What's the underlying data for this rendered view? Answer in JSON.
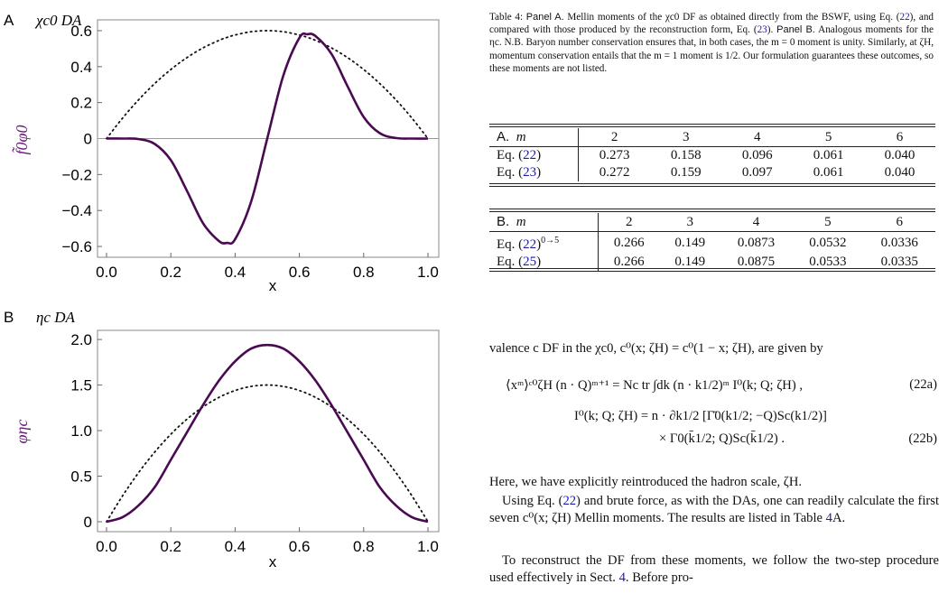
{
  "figure": {
    "panelA": {
      "letter": "A",
      "title": "χc0 DA",
      "ylabel": "f̃0φ0",
      "xlabel": "x",
      "xticks": [
        "0.0",
        "0.2",
        "0.4",
        "0.6",
        "0.8",
        "1.0"
      ],
      "yticks": [
        "0.6",
        "0.4",
        "0.2",
        "0",
        "−0.2",
        "−0.4",
        "−0.6"
      ]
    },
    "panelB": {
      "letter": "B",
      "title": "ηc DA",
      "ylabel": "φηc",
      "xlabel": "x",
      "xticks": [
        "0.0",
        "0.2",
        "0.4",
        "0.6",
        "0.8",
        "1.0"
      ],
      "yticks": [
        "2.0",
        "1.5",
        "1.0",
        "0.5",
        "0"
      ]
    }
  },
  "chart_data": [
    {
      "type": "line",
      "x": [
        0,
        0.05,
        0.1,
        0.15,
        0.2,
        0.25,
        0.3,
        0.35,
        0.375,
        0.4,
        0.45,
        0.5,
        0.55,
        0.6,
        0.625,
        0.65,
        0.7,
        0.75,
        0.8,
        0.85,
        0.9,
        0.95,
        1.0
      ],
      "series": [
        {
          "values": [
            0,
            0,
            -0.003,
            -0.03,
            -0.12,
            -0.29,
            -0.47,
            -0.57,
            -0.58,
            -0.56,
            -0.35,
            0,
            0.35,
            0.56,
            0.58,
            0.57,
            0.47,
            0.29,
            0.12,
            0.03,
            0.003,
            0,
            0
          ]
        },
        {
          "values": [
            0,
            0.114,
            0.216,
            0.306,
            0.384,
            0.45,
            0.504,
            0.546,
            0.5625,
            0.576,
            0.594,
            0.6,
            0.594,
            0.576,
            0.5625,
            0.546,
            0.504,
            0.45,
            0.384,
            0.306,
            0.216,
            0.114,
            0
          ]
        }
      ],
      "xlim": [
        0,
        1
      ],
      "ylim": [
        -0.66,
        0.66
      ],
      "title": "χc0 DA",
      "xlabel": "x",
      "ylabel": "f̃0φ0"
    },
    {
      "type": "line",
      "x": [
        0,
        0.05,
        0.1,
        0.15,
        0.2,
        0.25,
        0.3,
        0.35,
        0.4,
        0.45,
        0.5,
        0.55,
        0.6,
        0.65,
        0.7,
        0.75,
        0.8,
        0.85,
        0.9,
        0.95,
        1.0
      ],
      "series": [
        {
          "values": [
            0,
            0.05,
            0.18,
            0.38,
            0.68,
            0.98,
            1.28,
            1.55,
            1.76,
            1.9,
            1.94,
            1.9,
            1.76,
            1.55,
            1.28,
            0.98,
            0.68,
            0.38,
            0.18,
            0.05,
            0
          ]
        },
        {
          "values": [
            0,
            0.285,
            0.54,
            0.765,
            0.96,
            1.125,
            1.26,
            1.365,
            1.44,
            1.485,
            1.5,
            1.485,
            1.44,
            1.365,
            1.26,
            1.125,
            0.96,
            0.765,
            0.54,
            0.285,
            0
          ]
        }
      ],
      "xlim": [
        0,
        1
      ],
      "ylim": [
        0,
        2.1
      ],
      "title": "ηc DA",
      "xlabel": "x",
      "ylabel": "φηc"
    }
  ],
  "caption": {
    "lead": "Table 4:",
    "panelA_label": "Panel A.",
    "part1": "Mellin moments of the χc0 DF as obtained directly from the BSWF, using Eq. (",
    "ref1": "22",
    "part2": "), and compared with those produced by the reconstruction form, Eq. (",
    "ref2": "23",
    "part3": ").",
    "panelB_label": "Panel B.",
    "part4": "Analogous moments for the ηc. N.B. Baryon number conservation ensures that, in both cases, the m = 0 moment is unity. Similarly, at ζH, momentum conservation entails that the m = 1 moment is 1/2. Our formulation guarantees these outcomes, so these moments are not listed."
  },
  "tableA": {
    "label": "A.",
    "m": "m",
    "cols": [
      "2",
      "3",
      "4",
      "5",
      "6"
    ],
    "rows": [
      {
        "eq": "Eq. (",
        "ref": "22",
        "close": ")",
        "vals": [
          "0.273",
          "0.158",
          "0.096",
          "0.061",
          "0.040"
        ]
      },
      {
        "eq": "Eq. (",
        "ref": "23",
        "close": ")",
        "vals": [
          "0.272",
          "0.159",
          "0.097",
          "0.061",
          "0.040"
        ]
      }
    ]
  },
  "tableB": {
    "label": "B.",
    "m": "m",
    "cols": [
      "2",
      "3",
      "4",
      "5",
      "6"
    ],
    "rows": [
      {
        "eq": "Eq. (",
        "ref": "22",
        "close": ")",
        "sup": "0→5",
        "vals": [
          "0.266",
          "0.149",
          "0.0873",
          "0.0532",
          "0.0336"
        ]
      },
      {
        "eq": "Eq. (",
        "ref": "25",
        "close": ")",
        "sup": "",
        "vals": [
          "0.266",
          "0.149",
          "0.0875",
          "0.0533",
          "0.0335"
        ]
      }
    ]
  },
  "text": {
    "intro": "valence c DF in the χc0, c⁰(x; ζH) = c⁰(1 − x; ζH), are given by",
    "eq22a": "⟨xᵐ⟩ᶜ⁰ζH (n · Q)ᵐ⁺¹ = Nc tr ∫dk (n · k1/2)ᵐ I⁰(k; Q; ζH) ,",
    "eq22a_num": "(22a)",
    "eq22b1": "I⁰(k; Q; ζH) = n · ∂k1/2 [Γ̄0(k1/2; −Q)Sc(k1/2)]",
    "eq22b2": "× Γ0(k̄1/2; Q)Sc(k̄1/2) .",
    "eq22b_num": "(22b)",
    "p1": "Here, we have explicitly reintroduced the hadron scale, ζH.",
    "p2a": "Using Eq. (",
    "p2ref": "22",
    "p2b": ") and brute force, as with the DAs, one can readily calculate the first seven c⁰(x; ζH) Mellin moments. The results are listed in Table ",
    "p2ref2": "4",
    "p2c": "A.",
    "p3a": "To reconstruct the DF from these moments, we follow the two-step procedure used effectively in Sect. ",
    "p3ref": "4",
    "p3b": ". Before pro-"
  },
  "colors": {
    "solid": "#4a0a52",
    "dotted": "#111111",
    "link": "#1a1aa6",
    "ylabel": "#6a1a7a"
  }
}
